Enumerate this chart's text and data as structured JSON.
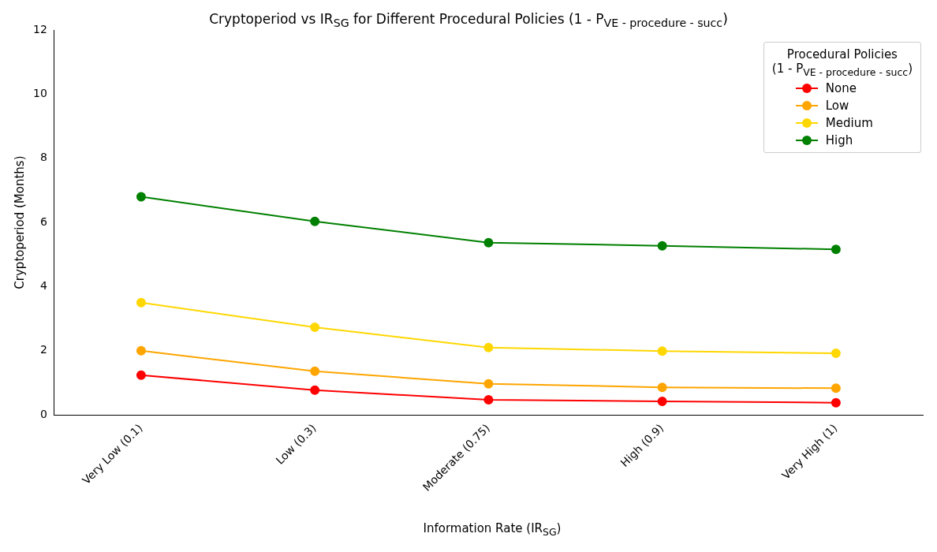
{
  "chart_data": {
    "type": "line",
    "title": "Cryptoperiod vs IR$_{SG}$ for Different Procedural Policies (1 - P$_{VE - procedure - succ}$)",
    "xlabel": "Information Rate (IR$_{SG}$)",
    "ylabel": "Cryptoperiod (Months)",
    "legend_title": "Procedural Policies\n(1 - P$_{VE - procedure - succ}$)",
    "categories": [
      "Very Low (0.1)",
      "Low (0.3)",
      "Moderate (0.75)",
      "High (0.9)",
      "Very High (1)"
    ],
    "series": [
      {
        "name": "None",
        "color": "#ff0000",
        "values": [
          1.24,
          0.77,
          0.47,
          0.42,
          0.38
        ]
      },
      {
        "name": "Low",
        "color": "#ffa500",
        "values": [
          2.0,
          1.36,
          0.97,
          0.86,
          0.83
        ]
      },
      {
        "name": "Medium",
        "color": "#ffd700",
        "values": [
          3.5,
          2.73,
          2.1,
          1.99,
          1.92
        ]
      },
      {
        "name": "High",
        "color": "#008000",
        "values": [
          6.8,
          6.03,
          5.37,
          5.27,
          5.16
        ]
      }
    ],
    "ylim": [
      0,
      12
    ],
    "yticks": [
      0,
      2,
      4,
      6,
      8,
      10,
      12
    ],
    "grid": false,
    "legend": "top right",
    "marker": "circle",
    "line_style": "solid"
  }
}
